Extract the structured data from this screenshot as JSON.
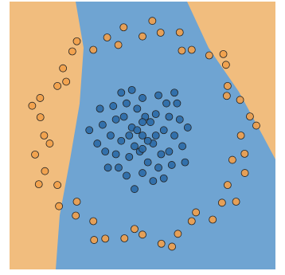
{
  "chart_data": {
    "type": "scatter",
    "xlim": [
      0,
      100
    ],
    "ylim": [
      0,
      100
    ],
    "series": [
      {
        "color": "#f2a04a",
        "x": [
          87,
          90.4,
          86.7,
          82.0,
          81.4,
          75.1,
          68.5,
          64.0,
          56.8,
          50,
          42.9,
          36.7,
          31.5,
          23.6,
          20.1,
          18.0,
          11.5,
          11.6,
          13,
          9.6,
          13.3,
          18.0,
          18.6,
          24.9,
          31.5,
          36.0,
          43.2,
          50,
          57.1,
          63.3,
          68.5,
          76.4,
          79.9,
          82.0,
          88.5,
          88.4,
          92.8,
          81.7,
          80.4,
          64.8,
          53.7,
          40.9,
          25.3,
          21.3,
          8.5,
          15.1,
          11.0,
          25.3,
          31.8,
          47.0,
          61.1,
          70.1,
          85.2,
          83.8
        ],
        "y": [
          50,
          57.1,
          63.3,
          68.5,
          76.4,
          79.9,
          82.0,
          88.5,
          88.4,
          87,
          90.4,
          86.6,
          82.0,
          81.4,
          75.1,
          68.5,
          64.0,
          56.8,
          50,
          42.9,
          36.7,
          31.5,
          23.6,
          20.1,
          18.0,
          11.5,
          11.6,
          13,
          9.6,
          13.3,
          18.0,
          18.6,
          24.9,
          31.5,
          36.0,
          43.2,
          53.7,
          64.8,
          80.4,
          81.7,
          92.8,
          83.8,
          85.2,
          70.1,
          61.1,
          47.0,
          31.8,
          25.3,
          11.0,
          15.1,
          8.5,
          21.3,
          25.3,
          40.9
        ]
      },
      {
        "color": "#2b6aa6",
        "x": [
          50,
          46,
          54,
          42,
          58,
          48,
          52,
          40,
          60,
          45,
          55,
          38,
          62,
          50,
          50,
          44,
          56,
          36,
          64,
          41,
          59,
          47,
          53,
          43,
          57,
          49,
          51,
          39,
          61,
          35,
          65,
          46,
          54,
          33,
          67,
          44,
          56,
          40,
          60,
          48,
          52,
          45,
          55,
          50,
          50,
          37,
          63,
          42,
          58,
          62,
          34,
          47,
          30,
          66
        ],
        "y": [
          50,
          53,
          47,
          48,
          52,
          60,
          40,
          56,
          44,
          42,
          58,
          50,
          50,
          64,
          36,
          62,
          38,
          44,
          56,
          38,
          62,
          46,
          55,
          57,
          43,
          44,
          57,
          61,
          39,
          54,
          46,
          67,
          33,
          47,
          53,
          35,
          65,
          43,
          57,
          52,
          48,
          50,
          50,
          45,
          55,
          38,
          62,
          66,
          34,
          66,
          60,
          30,
          52,
          40
        ]
      }
    ]
  }
}
